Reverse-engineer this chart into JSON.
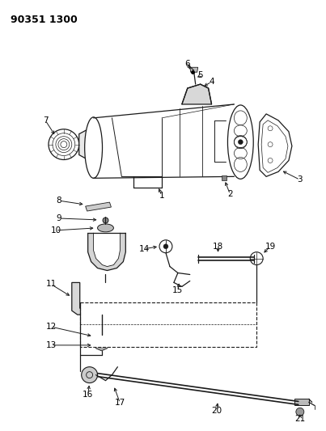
{
  "title": "90351 1300",
  "background_color": "#ffffff",
  "line_color": "#1a1a1a",
  "fig_w": 4.03,
  "fig_h": 5.33,
  "dpi": 100
}
